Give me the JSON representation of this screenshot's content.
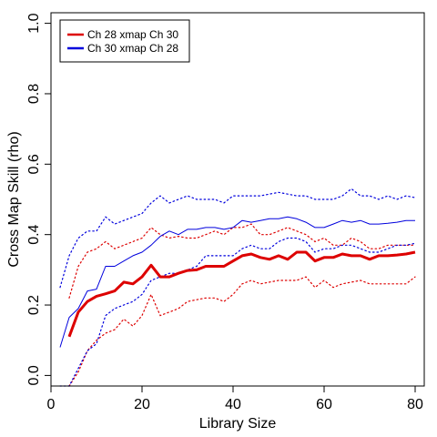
{
  "chart_data": {
    "type": "line",
    "title": "",
    "xlabel": "Library Size",
    "ylabel": "Cross Map Skill (rho)",
    "xlim": [
      0,
      82
    ],
    "ylim": [
      -0.03,
      1.03
    ],
    "xticks": [
      0,
      20,
      40,
      60,
      80
    ],
    "yticks": [
      0.0,
      0.2,
      0.4,
      0.6,
      0.8,
      1.0
    ],
    "xtick_labels": [
      "0",
      "20",
      "40",
      "60",
      "80"
    ],
    "ytick_labels": [
      "0.0",
      "0.2",
      "0.4",
      "0.6",
      "0.8",
      "1.0"
    ],
    "grid": false,
    "legend_position": "top-left",
    "series": [
      {
        "name": "Ch 28 xmap Ch 30",
        "color": "#dd0000",
        "line_width": 3,
        "x": [
          4,
          6,
          8,
          10,
          12,
          14,
          16,
          18,
          20,
          22,
          24,
          26,
          28,
          30,
          32,
          34,
          36,
          38,
          40,
          42,
          44,
          46,
          48,
          50,
          52,
          54,
          56,
          58,
          60,
          62,
          64,
          66,
          68,
          70,
          72,
          74,
          76,
          78,
          80
        ],
        "y": [
          0.11,
          0.18,
          0.21,
          0.225,
          0.232,
          0.24,
          0.265,
          0.26,
          0.28,
          0.313,
          0.28,
          0.28,
          0.29,
          0.298,
          0.3,
          0.31,
          0.31,
          0.31,
          0.325,
          0.34,
          0.345,
          0.335,
          0.33,
          0.34,
          0.33,
          0.35,
          0.35,
          0.325,
          0.335,
          0.335,
          0.345,
          0.34,
          0.34,
          0.33,
          0.34,
          0.34,
          0.342,
          0.345,
          0.35
        ]
      },
      {
        "name": "Ch 30  xmap Ch 28",
        "color": "#0000dd",
        "line_width": 1,
        "x": [
          2,
          4,
          6,
          8,
          10,
          12,
          14,
          16,
          18,
          20,
          22,
          24,
          26,
          28,
          30,
          32,
          34,
          36,
          38,
          40,
          42,
          44,
          46,
          48,
          50,
          52,
          54,
          56,
          58,
          60,
          62,
          64,
          66,
          68,
          70,
          72,
          74,
          76,
          78,
          80
        ],
        "y": [
          0.08,
          0.165,
          0.19,
          0.24,
          0.245,
          0.31,
          0.31,
          0.325,
          0.34,
          0.35,
          0.37,
          0.395,
          0.41,
          0.4,
          0.415,
          0.415,
          0.42,
          0.42,
          0.415,
          0.42,
          0.44,
          0.435,
          0.44,
          0.445,
          0.445,
          0.45,
          0.445,
          0.435,
          0.42,
          0.42,
          0.43,
          0.44,
          0.435,
          0.44,
          0.43,
          0.43,
          0.432,
          0.435,
          0.44,
          0.44
        ]
      }
    ],
    "bands": [
      {
        "color": "#dd0000",
        "upper": {
          "x": [
            4,
            6,
            8,
            10,
            12,
            14,
            16,
            18,
            20,
            22,
            24,
            26,
            28,
            30,
            32,
            34,
            36,
            38,
            40,
            42,
            44,
            46,
            48,
            50,
            52,
            54,
            56,
            58,
            60,
            62,
            64,
            66,
            68,
            70,
            72,
            74,
            76,
            78,
            80
          ],
          "y": [
            0.22,
            0.31,
            0.35,
            0.36,
            0.38,
            0.36,
            0.37,
            0.38,
            0.39,
            0.42,
            0.4,
            0.39,
            0.395,
            0.39,
            0.39,
            0.4,
            0.41,
            0.4,
            0.42,
            0.42,
            0.43,
            0.4,
            0.4,
            0.41,
            0.42,
            0.41,
            0.4,
            0.38,
            0.39,
            0.37,
            0.37,
            0.39,
            0.38,
            0.36,
            0.36,
            0.37,
            0.37,
            0.37,
            0.37
          ]
        },
        "lower": {
          "x": [
            4,
            6,
            8,
            10,
            12,
            14,
            16,
            18,
            20,
            22,
            24,
            26,
            28,
            30,
            32,
            34,
            36,
            38,
            40,
            42,
            44,
            46,
            48,
            50,
            52,
            54,
            56,
            58,
            60,
            62,
            64,
            66,
            68,
            70,
            72,
            74,
            76,
            78,
            80
          ],
          "y": [
            -0.03,
            0.01,
            0.07,
            0.1,
            0.12,
            0.13,
            0.16,
            0.14,
            0.17,
            0.23,
            0.17,
            0.18,
            0.19,
            0.21,
            0.215,
            0.22,
            0.22,
            0.21,
            0.23,
            0.26,
            0.27,
            0.26,
            0.265,
            0.27,
            0.27,
            0.27,
            0.28,
            0.25,
            0.27,
            0.25,
            0.26,
            0.265,
            0.27,
            0.26,
            0.26,
            0.26,
            0.26,
            0.26,
            0.28
          ]
        }
      },
      {
        "color": "#0000dd",
        "upper": {
          "x": [
            2,
            4,
            6,
            8,
            10,
            12,
            14,
            16,
            18,
            20,
            22,
            24,
            26,
            28,
            30,
            32,
            34,
            36,
            38,
            40,
            42,
            44,
            46,
            48,
            50,
            52,
            54,
            56,
            58,
            60,
            62,
            64,
            66,
            68,
            70,
            72,
            74,
            76,
            78,
            80
          ],
          "y": [
            0.25,
            0.34,
            0.39,
            0.41,
            0.41,
            0.45,
            0.43,
            0.44,
            0.45,
            0.46,
            0.49,
            0.51,
            0.49,
            0.5,
            0.51,
            0.5,
            0.5,
            0.5,
            0.49,
            0.51,
            0.51,
            0.51,
            0.51,
            0.515,
            0.52,
            0.515,
            0.51,
            0.51,
            0.5,
            0.5,
            0.5,
            0.51,
            0.53,
            0.51,
            0.51,
            0.5,
            0.51,
            0.5,
            0.51,
            0.505
          ]
        },
        "lower": {
          "x": [
            2,
            4,
            6,
            8,
            10,
            12,
            14,
            16,
            18,
            20,
            22,
            24,
            26,
            28,
            30,
            32,
            34,
            36,
            38,
            40,
            42,
            44,
            46,
            48,
            50,
            52,
            54,
            56,
            58,
            60,
            62,
            64,
            66,
            68,
            70,
            72,
            74,
            76,
            78,
            80
          ],
          "y": [
            -0.03,
            -0.03,
            0.02,
            0.07,
            0.09,
            0.17,
            0.19,
            0.2,
            0.21,
            0.23,
            0.27,
            0.28,
            0.29,
            0.29,
            0.3,
            0.31,
            0.34,
            0.34,
            0.34,
            0.34,
            0.36,
            0.37,
            0.36,
            0.36,
            0.38,
            0.39,
            0.39,
            0.38,
            0.35,
            0.36,
            0.36,
            0.37,
            0.37,
            0.36,
            0.35,
            0.35,
            0.36,
            0.37,
            0.37,
            0.375
          ]
        }
      }
    ]
  }
}
